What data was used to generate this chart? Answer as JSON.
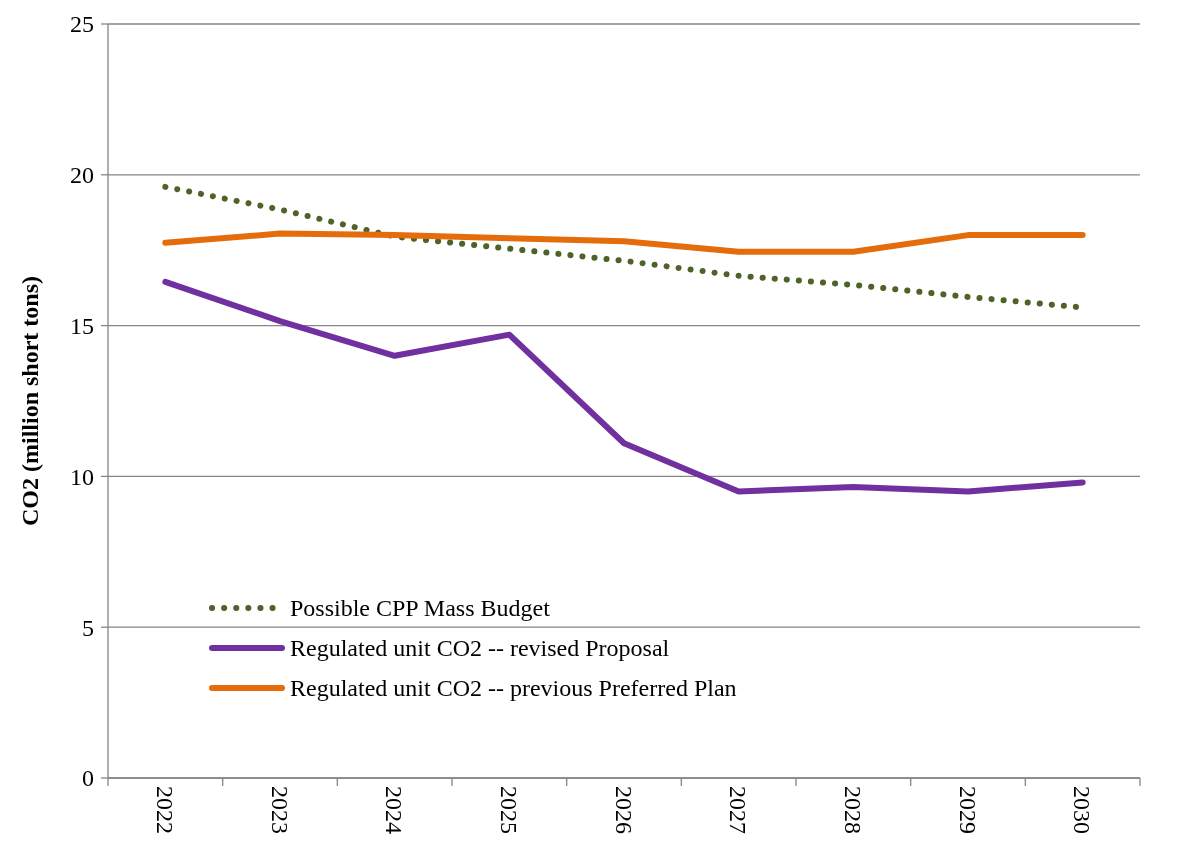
{
  "chart_data": {
    "type": "line",
    "ylabel": "CO2 (million short tons)",
    "categories": [
      "2022",
      "2023",
      "2024",
      "2025",
      "2026",
      "2027",
      "2028",
      "2029",
      "2030"
    ],
    "series": [
      {
        "name": "Possible CPP Mass Budget",
        "color": "#4f6228",
        "line_style": "dotted",
        "values": [
          19.6,
          18.85,
          17.95,
          17.55,
          17.15,
          16.65,
          16.35,
          15.95,
          15.6
        ]
      },
      {
        "name": "Regulated unit CO2 -- revised Proposal",
        "color": "#7030a0",
        "line_style": "solid",
        "values": [
          16.45,
          15.15,
          14.0,
          14.7,
          11.1,
          9.5,
          9.65,
          9.5,
          9.8
        ]
      },
      {
        "name": "Regulated unit CO2 -- previous Preferred Plan",
        "color": "#e46c0a",
        "line_style": "solid",
        "values": [
          17.75,
          18.05,
          18.0,
          17.9,
          17.8,
          17.45,
          17.45,
          18.0,
          18.0
        ]
      }
    ],
    "ylim": [
      0,
      25
    ],
    "yticks": [
      0,
      5,
      10,
      15,
      20,
      25
    ],
    "grid": "y",
    "legend": "bottom left"
  }
}
